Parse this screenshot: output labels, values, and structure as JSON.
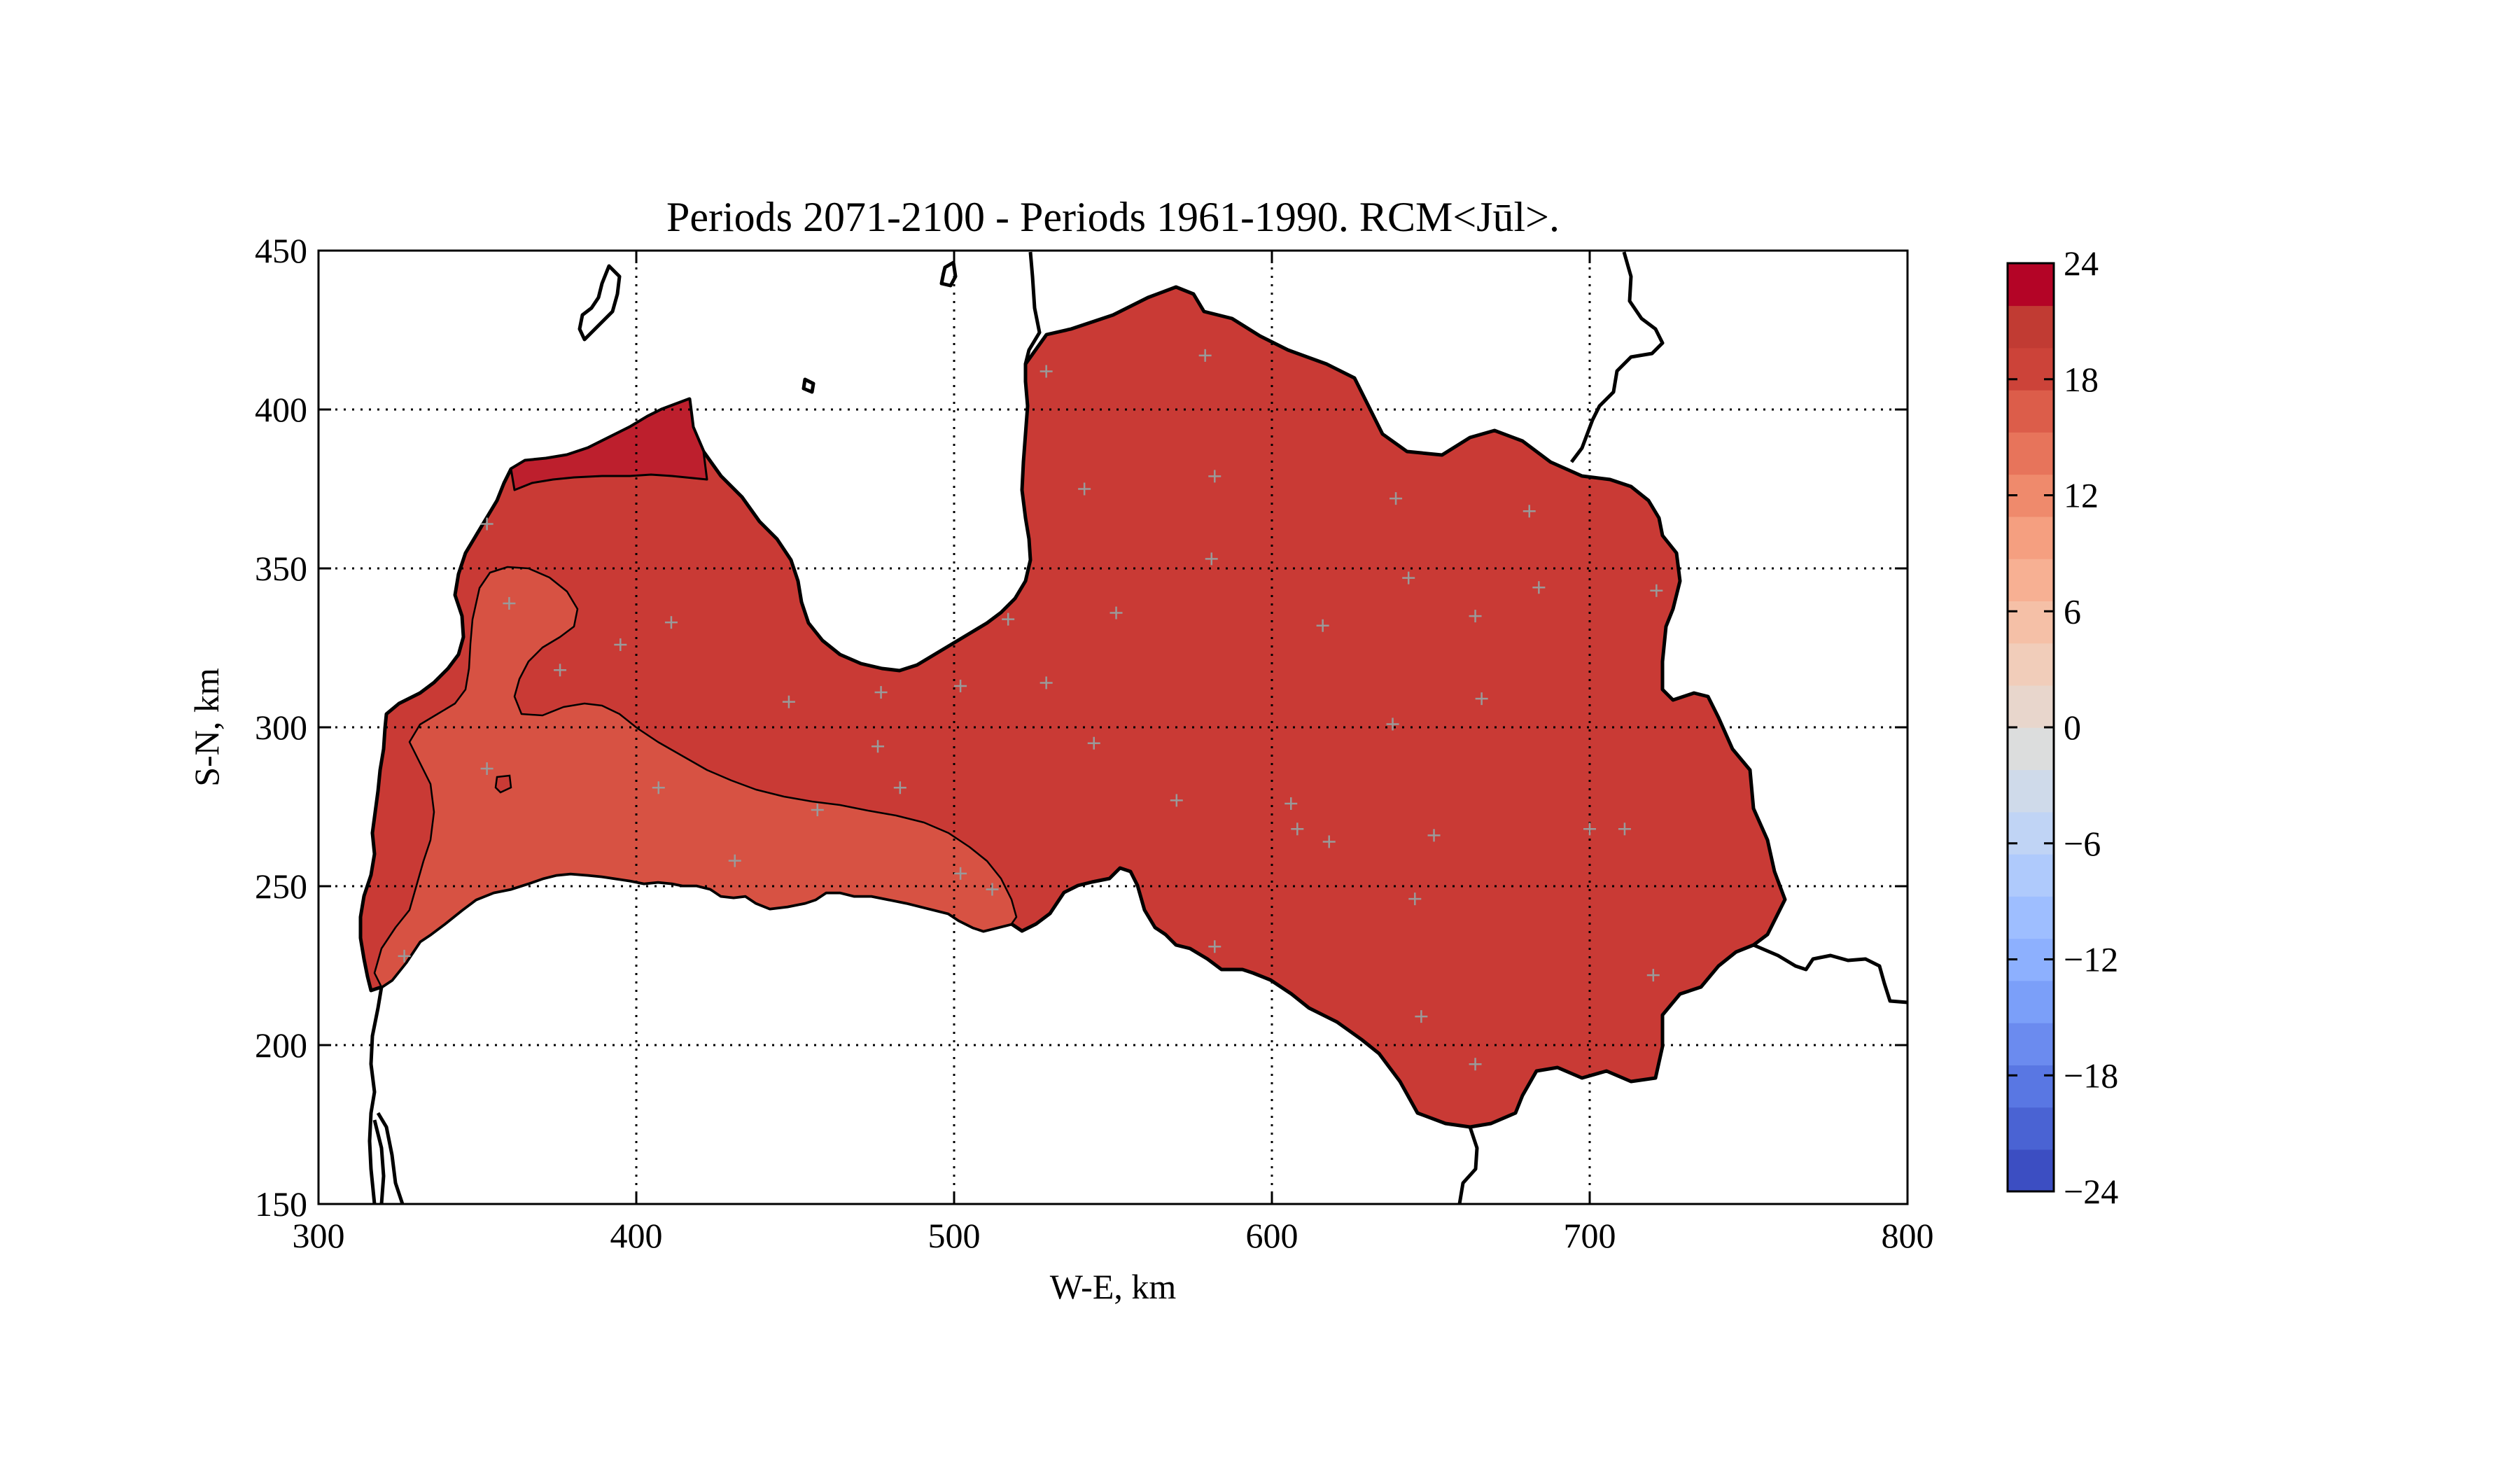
{
  "title": "Periods 2071-2100 - Periods 1961-1990. RCM<Jūl>.",
  "xlabel": "W-E, km",
  "ylabel": "S-N, km",
  "chart_data": {
    "type": "contour-map",
    "xlim": [
      300,
      800
    ],
    "ylim": [
      150,
      450
    ],
    "x_ticks": [
      300,
      400,
      500,
      600,
      700,
      800
    ],
    "y_ticks": [
      150,
      200,
      250,
      300,
      350,
      400,
      450
    ],
    "grid": true,
    "grid_style": "dotted",
    "colorbar": {
      "min": -24,
      "max": 24,
      "step": 3,
      "ticks": [
        -24,
        -18,
        -12,
        -6,
        0,
        6,
        12,
        18,
        24
      ],
      "tick_labels": [
        "−24",
        "−18",
        "−12",
        "−6",
        "0",
        "6",
        "12",
        "18",
        "24"
      ],
      "colors": [
        "#3c4ec2",
        "#4a63d3",
        "#5977e3",
        "#6b8bef",
        "#7b9ff9",
        "#8db0fe",
        "#9ebeff",
        "#afcafc",
        "#c0d4f5",
        "#cfdaea",
        "#dcdddd",
        "#e8d6cc",
        "#f1cdba",
        "#f5c0a7",
        "#f7b093",
        "#f59f80",
        "#ef8a6c",
        "#e7745b",
        "#dc5d4a",
        "#cc4339",
        "#c13b33",
        "#b40426"
      ]
    },
    "regions": [
      {
        "level_range": [
          21,
          24
        ],
        "color": "#bd1f2d"
      },
      {
        "level_range": [
          18,
          21
        ],
        "color": "#c93a35"
      },
      {
        "level_range": [
          15,
          18
        ],
        "color": "#d75243"
      }
    ],
    "stations": [
      [
        529,
        412
      ],
      [
        579,
        417
      ],
      [
        541,
        375
      ],
      [
        582,
        379
      ],
      [
        581,
        353
      ],
      [
        551,
        336
      ],
      [
        529,
        314
      ],
      [
        517,
        334
      ],
      [
        502,
        313
      ],
      [
        477,
        311
      ],
      [
        448,
        308
      ],
      [
        476,
        294
      ],
      [
        483,
        281
      ],
      [
        457,
        274
      ],
      [
        544,
        295
      ],
      [
        570,
        277
      ],
      [
        606,
        276
      ],
      [
        608,
        268
      ],
      [
        618,
        264
      ],
      [
        639,
        372
      ],
      [
        643,
        347
      ],
      [
        616,
        332
      ],
      [
        664,
        335
      ],
      [
        666,
        309
      ],
      [
        638,
        301
      ],
      [
        651,
        266
      ],
      [
        645,
        246
      ],
      [
        681,
        368
      ],
      [
        684,
        344
      ],
      [
        721,
        343
      ],
      [
        700,
        268
      ],
      [
        711,
        268
      ],
      [
        720,
        222
      ],
      [
        647,
        209
      ],
      [
        664,
        194
      ],
      [
        582,
        231
      ],
      [
        411,
        333
      ],
      [
        395,
        326
      ],
      [
        376,
        318
      ],
      [
        360,
        339
      ],
      [
        353,
        287
      ],
      [
        407,
        281
      ],
      [
        431,
        258
      ],
      [
        502,
        254
      ],
      [
        512,
        249
      ],
      [
        327,
        228
      ],
      [
        353,
        364
      ]
    ]
  }
}
